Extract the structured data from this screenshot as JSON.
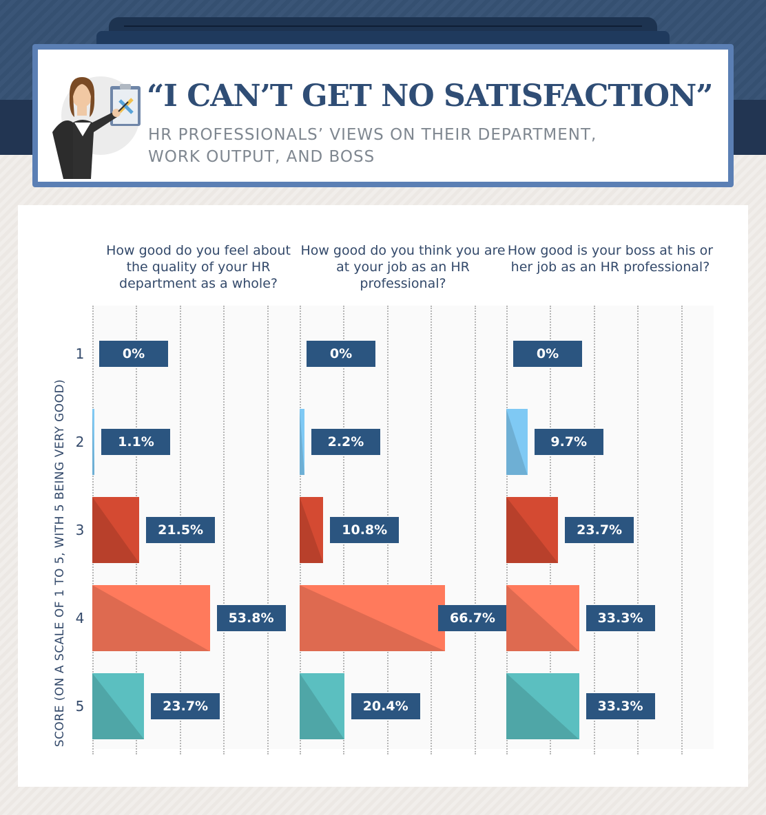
{
  "header": {
    "title": "“I CAN’T GET NO SATISFACTION”",
    "subtitle": "HR PROFESSIONALS’ VIEWS ON THEIR DEPARTMENT, WORK OUTPUT, AND BOSS"
  },
  "chart_data": {
    "type": "bar",
    "orientation": "horizontal",
    "ylabel": "SCORE (ON A SCALE OF 1 TO 5, WITH 5 BEING VERY GOOD)",
    "categories": [
      "1",
      "2",
      "3",
      "4",
      "5"
    ],
    "xlim": [
      0,
      100
    ],
    "grid": true,
    "colors": [
      "#7fc9f4",
      "#d44a32",
      "#ff7a5c",
      "#5bbfc0"
    ],
    "series": [
      {
        "question": "How good do you feel about the quality of your HR department as a whole?",
        "values": [
          0,
          1.1,
          21.5,
          53.8,
          23.7
        ],
        "labels": [
          "0%",
          "1.1%",
          "21.5%",
          "53.8%",
          "23.7%"
        ]
      },
      {
        "question": "How good do you think you are at your job as an HR professional?",
        "values": [
          0,
          2.2,
          10.8,
          66.7,
          20.4
        ],
        "labels": [
          "0%",
          "2.2%",
          "10.8%",
          "66.7%",
          "20.4%"
        ]
      },
      {
        "question": "How good is your boss at his or her job as an HR professional?",
        "values": [
          0,
          9.7,
          23.7,
          33.3,
          33.3
        ],
        "labels": [
          "0%",
          "9.7%",
          "23.7%",
          "33.3%",
          "33.3%"
        ]
      }
    ]
  }
}
